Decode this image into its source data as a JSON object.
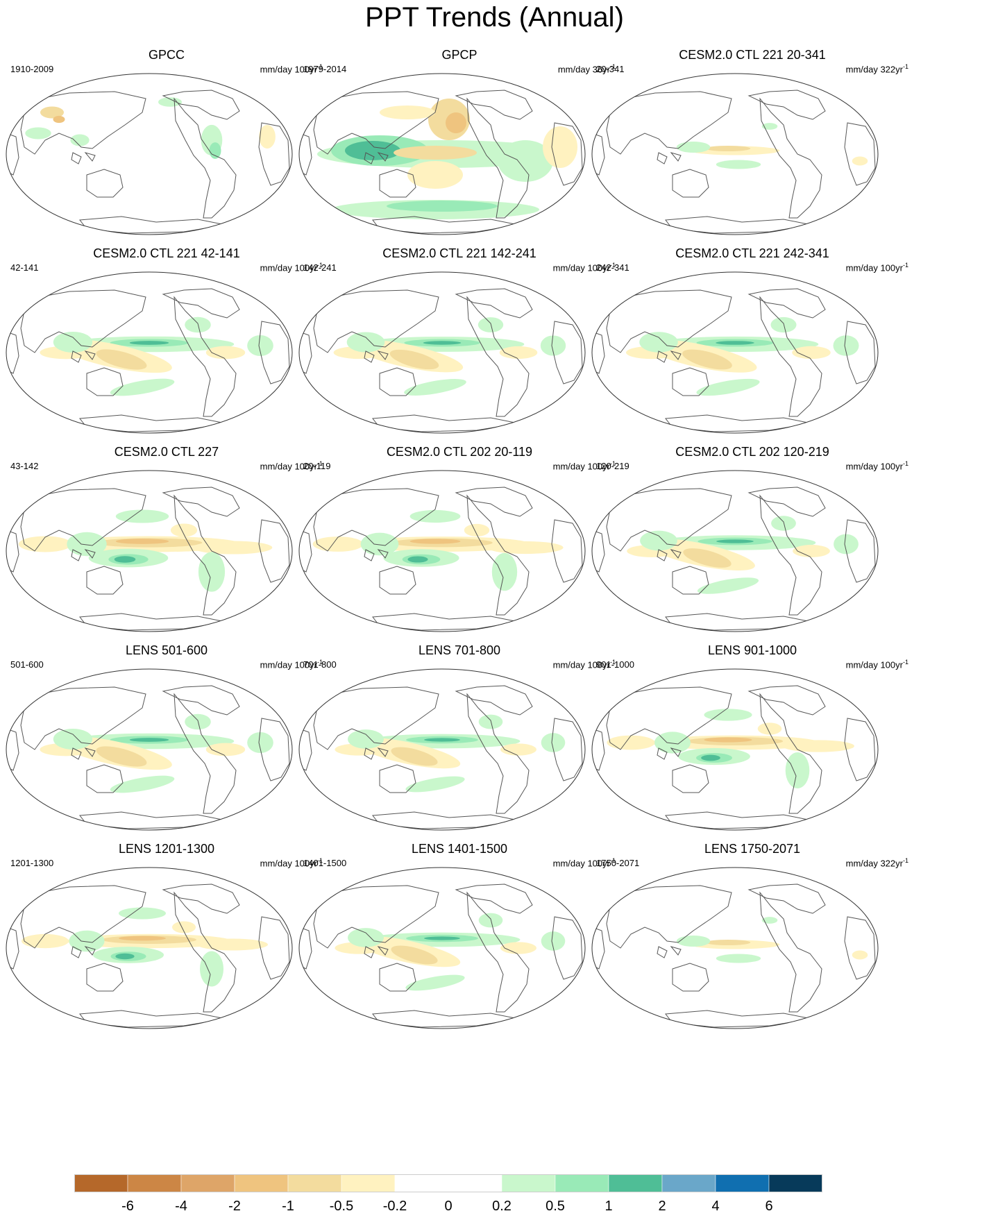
{
  "title": "PPT Trends (Annual)",
  "panels": [
    {
      "title": "GPCC",
      "left": "1910-2009",
      "unit": "mm/day 100yr",
      "exp": "-1",
      "pattern": "gpcc",
      "intensity": 0.5
    },
    {
      "title": "GPCP",
      "left": "1979-2014",
      "unit": "mm/day 36yr",
      "exp": "-1",
      "pattern": "gpcp",
      "intensity": 1.0
    },
    {
      "title": "CESM2.0 CTL 221 20-341",
      "left": "20-341",
      "unit": "mm/day 322yr",
      "exp": "-1",
      "pattern": "weak",
      "intensity": 0.35
    },
    {
      "title": "CESM2.0 CTL 221 42-141",
      "left": "42-141",
      "unit": "mm/day 100yr",
      "exp": "-1",
      "pattern": "enso-green",
      "intensity": 0.8
    },
    {
      "title": "CESM2.0 CTL 221 142-241",
      "left": "142-241",
      "unit": "mm/day 100yr",
      "exp": "-1",
      "pattern": "enso-green",
      "intensity": 0.7
    },
    {
      "title": "CESM2.0 CTL 221 242-341",
      "left": "242-341",
      "unit": "mm/day 100yr",
      "exp": "-1",
      "pattern": "enso-green",
      "intensity": 0.75
    },
    {
      "title": "CESM2.0 CTL 227",
      "left": "43-142",
      "unit": "mm/day 100yr",
      "exp": "-1",
      "pattern": "enso-brown",
      "intensity": 0.85
    },
    {
      "title": "CESM2.0 CTL 202 20-119",
      "left": "20-119",
      "unit": "mm/day 100yr",
      "exp": "-1",
      "pattern": "enso-brown",
      "intensity": 0.7
    },
    {
      "title": "CESM2.0 CTL 202 120-219",
      "left": "120-219",
      "unit": "mm/day 100yr",
      "exp": "-1",
      "pattern": "enso-green",
      "intensity": 0.65
    },
    {
      "title": "LENS 501-600",
      "left": "501-600",
      "unit": "mm/day 100yr",
      "exp": "-1",
      "pattern": "enso-green",
      "intensity": 0.8
    },
    {
      "title": "LENS 701-800",
      "left": "701-800",
      "unit": "mm/day 100yr",
      "exp": "-1",
      "pattern": "enso-green",
      "intensity": 0.55
    },
    {
      "title": "LENS 901-1000",
      "left": "901-1000",
      "unit": "mm/day 100yr",
      "exp": "-1",
      "pattern": "enso-brown",
      "intensity": 0.55
    },
    {
      "title": "LENS 1201-1300",
      "left": "1201-1300",
      "unit": "mm/day 100yr",
      "exp": "-1",
      "pattern": "enso-brown",
      "intensity": 0.5
    },
    {
      "title": "LENS 1401-1500",
      "left": "1401-1500",
      "unit": "mm/day 100yr",
      "exp": "-1",
      "pattern": "enso-green",
      "intensity": 0.55
    },
    {
      "title": "LENS 1750-2071",
      "left": "1750-2071",
      "unit": "mm/day 322yr",
      "exp": "-1",
      "pattern": "weak",
      "intensity": 0.35
    }
  ],
  "colorbar": {
    "colors": [
      "#b5682a",
      "#cc8645",
      "#dea568",
      "#efc47f",
      "#f3dc9e",
      "#fff2c0",
      "#ffffff",
      "#ffffff",
      "#c9f7cc",
      "#99eab7",
      "#4fbe96",
      "#6aa7c9",
      "#106fb0",
      "#073a5a"
    ],
    "labels": [
      "-6",
      "-4",
      "-2",
      "-1",
      "-0.5",
      "-0.2",
      "0",
      "0.2",
      "0.5",
      "1",
      "2",
      "4",
      "6"
    ]
  }
}
